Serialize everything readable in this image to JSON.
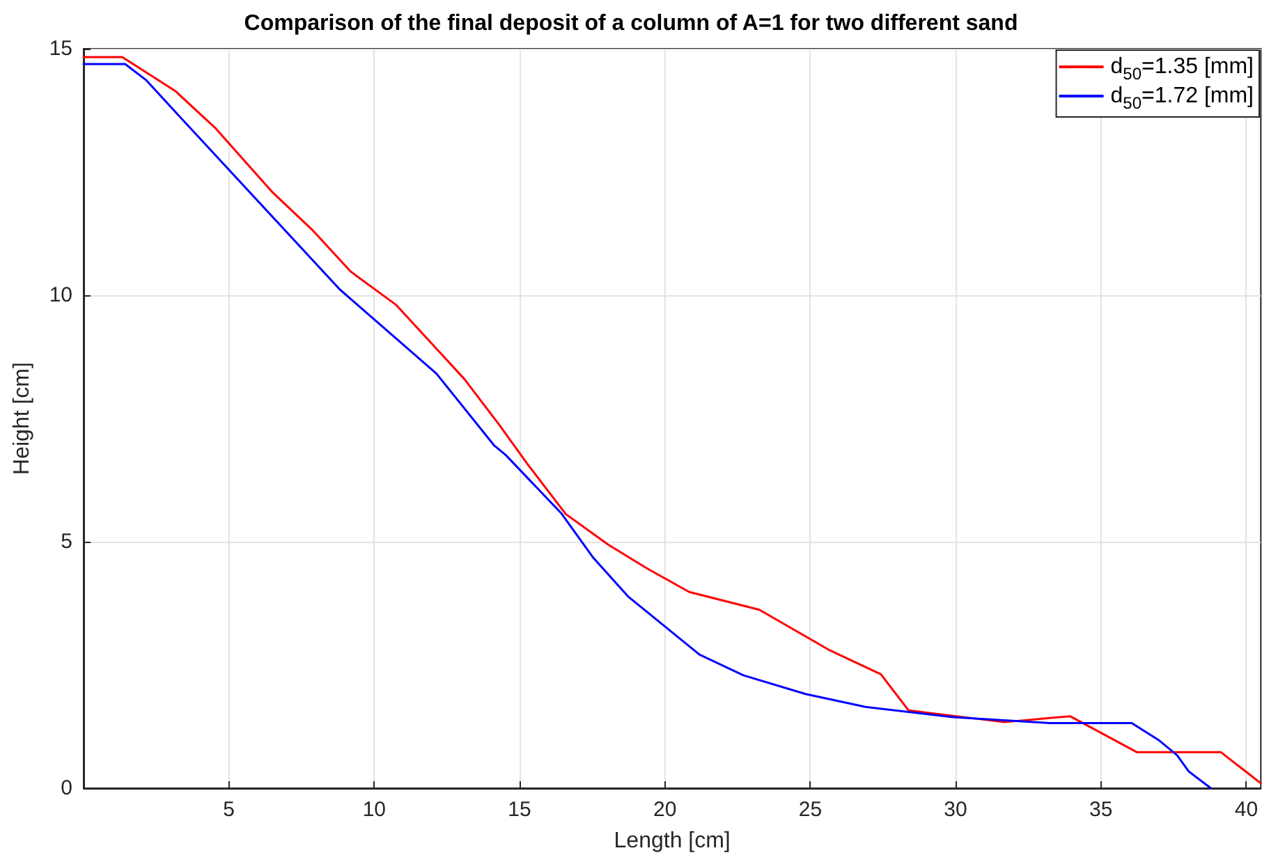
{
  "chart_data": {
    "type": "line",
    "title": "Comparison of the final deposit of a column of A=1 for two different sand",
    "xlabel": "Length [cm]",
    "ylabel": "Height [cm]",
    "xlim": [
      0,
      40.5
    ],
    "xticks": [
      5,
      10,
      15,
      20,
      25,
      30,
      35,
      40
    ],
    "ylim": [
      0,
      15
    ],
    "yticks": [
      0,
      5,
      10,
      15
    ],
    "grid": true,
    "legend": "top right",
    "marker": "none",
    "line_style": "solid",
    "series": [
      {
        "name": "d$_{50}$=1.35 [mm]",
        "color": "#ff0000",
        "x": [
          0,
          1.33,
          3.14,
          4.52,
          6.48,
          7.86,
          9.19,
          10.76,
          13.1,
          14.3,
          15.24,
          16.59,
          18.05,
          19.41,
          20.84,
          23.25,
          25.63,
          27.43,
          28.38,
          31.67,
          33.94,
          36.24,
          39.13,
          40.5
        ],
        "values": [
          14.83,
          14.83,
          14.15,
          13.4,
          12.1,
          11.33,
          10.48,
          9.8,
          8.3,
          7.37,
          6.6,
          5.56,
          4.94,
          4.45,
          3.98,
          3.62,
          2.81,
          2.31,
          1.58,
          1.34,
          1.46,
          0.73,
          0.73,
          0.1
        ]
      },
      {
        "name": "d$_{50}$=1.72 [mm]",
        "color": "#0000ff",
        "x": [
          0,
          1.43,
          2.14,
          3.17,
          8.81,
          12.14,
          14.13,
          14.52,
          16.43,
          17.54,
          18.73,
          21.19,
          22.7,
          24.84,
          26.9,
          29.92,
          33.25,
          36.06,
          37.0,
          37.62,
          38.02,
          38.78
        ],
        "values": [
          14.69,
          14.69,
          14.37,
          13.71,
          10.12,
          8.41,
          6.95,
          6.76,
          5.58,
          4.67,
          3.89,
          2.71,
          2.29,
          1.91,
          1.65,
          1.44,
          1.32,
          1.32,
          0.97,
          0.67,
          0.34,
          0
        ]
      }
    ]
  }
}
